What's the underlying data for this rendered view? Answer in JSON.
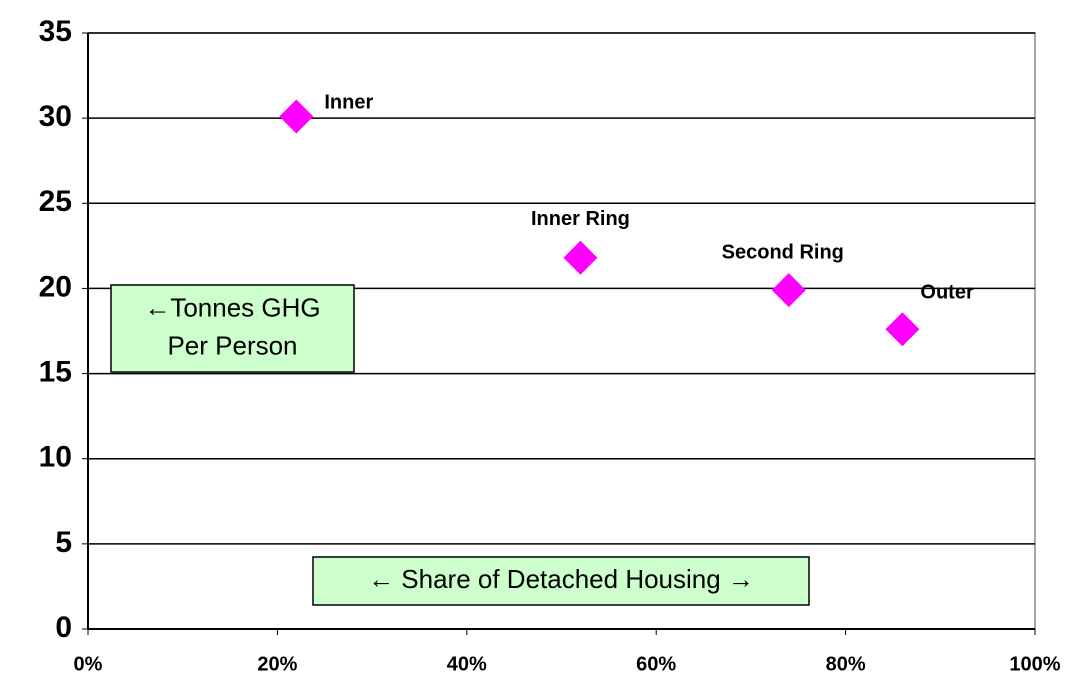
{
  "chart_data": {
    "type": "scatter",
    "series": [
      {
        "color": "#ff00ff",
        "x": [
          22,
          52,
          74,
          86
        ],
        "values": [
          30.1,
          21.8,
          19.9,
          17.6
        ],
        "point_labels": [
          "Inner",
          "Inner Ring",
          "Second Ring",
          "Outer"
        ]
      }
    ],
    "xlim": [
      0,
      100
    ],
    "xticks": [
      {
        "value": 0,
        "label": "0%"
      },
      {
        "value": 20,
        "label": "20%"
      },
      {
        "value": 40,
        "label": "40%"
      },
      {
        "value": 60,
        "label": "60%"
      },
      {
        "value": 80,
        "label": "80%"
      },
      {
        "value": 100,
        "label": "100%"
      }
    ],
    "ylim": [
      0,
      35
    ],
    "yticks": [
      0,
      5,
      10,
      15,
      20,
      25,
      30,
      35
    ],
    "grid": true,
    "annotations": [
      {
        "lines": [
          "←Tonnes GHG",
          "Per Person"
        ]
      },
      {
        "lines": [
          "← Share of Detached Housing →"
        ]
      }
    ]
  }
}
